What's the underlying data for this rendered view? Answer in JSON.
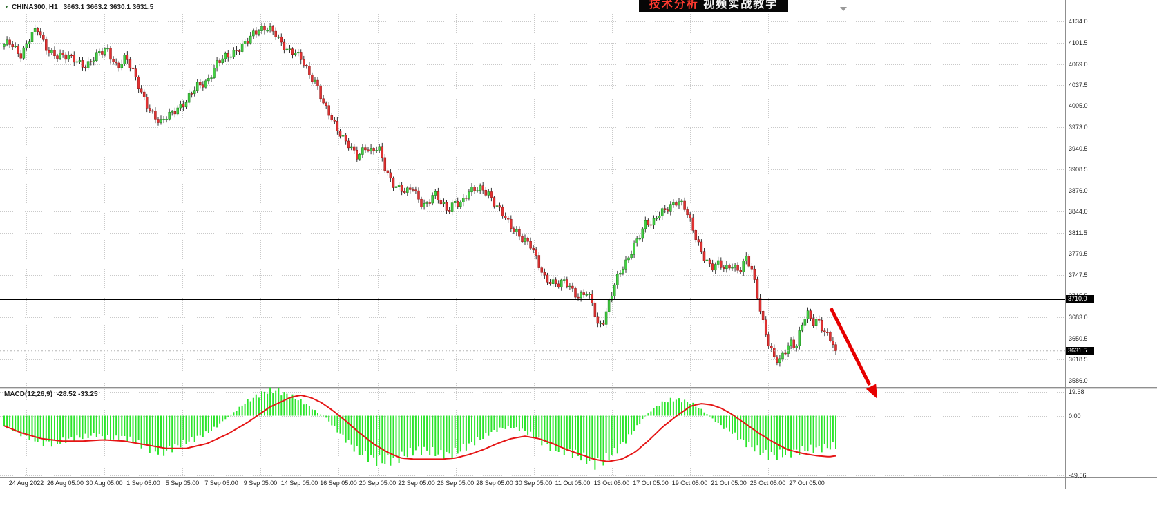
{
  "window": {
    "symbol": "CHINA300, H1",
    "ohlc": "3663.1 3663.2 3630.1 3631.5"
  },
  "banner": {
    "segments": [
      {
        "text": "技术分析",
        "color": "#ff3b30"
      },
      {
        "text": " 视频实战教学",
        "color": "#f2f2f2"
      }
    ]
  },
  "price_tags": {
    "hline": "3710.0",
    "last": "3631.5"
  },
  "chart_data": {
    "type": "candlestick",
    "title": "CHINA300, H1",
    "price_axis": {
      "ticks": [
        "4134.0",
        "4101.5",
        "4069.0",
        "4037.5",
        "4005.0",
        "3973.0",
        "3940.5",
        "3908.5",
        "3876.0",
        "3844.0",
        "3811.5",
        "3779.5",
        "3747.5",
        "3715.5",
        "3683.0",
        "3650.5",
        "3618.5",
        "3586.0"
      ]
    },
    "time_axis": {
      "ticks": [
        "24 Aug 2022",
        "26 Aug 05:00",
        "30 Aug 05:00",
        "1 Sep 05:00",
        "5 Sep 05:00",
        "7 Sep 05:00",
        "9 Sep 05:00",
        "14 Sep 05:00",
        "16 Sep 05:00",
        "20 Sep 05:00",
        "22 Sep 05:00",
        "26 Sep 05:00",
        "28 Sep 05:00",
        "30 Sep 05:00",
        "11 Oct 05:00",
        "13 Oct 05:00",
        "17 Oct 05:00",
        "19 Oct 05:00",
        "21 Oct 05:00",
        "25 Oct 05:00",
        "27 Oct 05:00"
      ]
    },
    "hline_value": 3710.0,
    "last_price": 3631.5,
    "price_keyframes": [
      [
        0,
        4093
      ],
      [
        15,
        4100
      ],
      [
        30,
        4085
      ],
      [
        45,
        4112
      ],
      [
        55,
        4120
      ],
      [
        65,
        4095
      ],
      [
        80,
        4085
      ],
      [
        95,
        4078
      ],
      [
        110,
        4075
      ],
      [
        125,
        4068
      ],
      [
        140,
        4080
      ],
      [
        155,
        4092
      ],
      [
        170,
        4066
      ],
      [
        182,
        4078
      ],
      [
        195,
        4050
      ],
      [
        210,
        4015
      ],
      [
        222,
        3990
      ],
      [
        232,
        3975
      ],
      [
        242,
        3990
      ],
      [
        255,
        4003
      ],
      [
        270,
        4010
      ],
      [
        285,
        4035
      ],
      [
        300,
        4045
      ],
      [
        315,
        4070
      ],
      [
        330,
        4080
      ],
      [
        345,
        4095
      ],
      [
        360,
        4105
      ],
      [
        375,
        4120
      ],
      [
        388,
        4128
      ],
      [
        398,
        4118
      ],
      [
        408,
        4095
      ],
      [
        418,
        4086
      ],
      [
        428,
        4090
      ],
      [
        438,
        4078
      ],
      [
        448,
        4050
      ],
      [
        458,
        4035
      ],
      [
        468,
        4010
      ],
      [
        478,
        3995
      ],
      [
        488,
        3970
      ],
      [
        498,
        3950
      ],
      [
        508,
        3940
      ],
      [
        518,
        3930
      ],
      [
        528,
        3945
      ],
      [
        538,
        3933
      ],
      [
        548,
        3940
      ],
      [
        558,
        3910
      ],
      [
        568,
        3890
      ],
      [
        578,
        3880
      ],
      [
        588,
        3870
      ],
      [
        598,
        3880
      ],
      [
        608,
        3860
      ],
      [
        618,
        3856
      ],
      [
        628,
        3870
      ],
      [
        638,
        3856
      ],
      [
        648,
        3846
      ],
      [
        658,
        3862
      ],
      [
        668,
        3856
      ],
      [
        678,
        3870
      ],
      [
        688,
        3878
      ],
      [
        698,
        3882
      ],
      [
        708,
        3872
      ],
      [
        718,
        3850
      ],
      [
        728,
        3838
      ],
      [
        738,
        3825
      ],
      [
        748,
        3815
      ],
      [
        758,
        3800
      ],
      [
        768,
        3790
      ],
      [
        778,
        3768
      ],
      [
        788,
        3746
      ],
      [
        798,
        3738
      ],
      [
        808,
        3730
      ],
      [
        818,
        3736
      ],
      [
        828,
        3726
      ],
      [
        838,
        3716
      ],
      [
        848,
        3722
      ],
      [
        858,
        3700
      ],
      [
        866,
        3666
      ],
      [
        874,
        3680
      ],
      [
        882,
        3710
      ],
      [
        890,
        3735
      ],
      [
        898,
        3750
      ],
      [
        908,
        3766
      ],
      [
        918,
        3795
      ],
      [
        928,
        3815
      ],
      [
        936,
        3830
      ],
      [
        944,
        3820
      ],
      [
        952,
        3836
      ],
      [
        960,
        3846
      ],
      [
        970,
        3855
      ],
      [
        980,
        3860
      ],
      [
        990,
        3850
      ],
      [
        1000,
        3826
      ],
      [
        1010,
        3800
      ],
      [
        1020,
        3775
      ],
      [
        1030,
        3756
      ],
      [
        1040,
        3762
      ],
      [
        1050,
        3758
      ],
      [
        1060,
        3766
      ],
      [
        1070,
        3752
      ],
      [
        1080,
        3770
      ],
      [
        1088,
        3756
      ],
      [
        1096,
        3720
      ],
      [
        1104,
        3680
      ],
      [
        1112,
        3646
      ],
      [
        1120,
        3620
      ],
      [
        1128,
        3612
      ],
      [
        1136,
        3630
      ],
      [
        1144,
        3648
      ],
      [
        1152,
        3640
      ],
      [
        1160,
        3668
      ],
      [
        1168,
        3688
      ],
      [
        1176,
        3672
      ],
      [
        1184,
        3680
      ],
      [
        1192,
        3666
      ],
      [
        1200,
        3655
      ],
      [
        1210,
        3634
      ]
    ],
    "macd": {
      "label": "MACD(12,26,9)",
      "values_text": "-28.52 -33.25",
      "macd_value": -28.52,
      "signal_value": -33.25,
      "axis_ticks": [
        "19.68",
        "0.00",
        "-49.56"
      ],
      "hist_keyframes": [
        [
          0,
          -8
        ],
        [
          20,
          -14
        ],
        [
          40,
          -20
        ],
        [
          60,
          -25
        ],
        [
          80,
          -26
        ],
        [
          100,
          -22
        ],
        [
          120,
          -20
        ],
        [
          140,
          -18
        ],
        [
          160,
          -22
        ],
        [
          180,
          -20
        ],
        [
          200,
          -26
        ],
        [
          220,
          -32
        ],
        [
          235,
          -35
        ],
        [
          250,
          -30
        ],
        [
          265,
          -26
        ],
        [
          280,
          -22
        ],
        [
          295,
          -18
        ],
        [
          310,
          -12
        ],
        [
          325,
          -4
        ],
        [
          340,
          4
        ],
        [
          355,
          12
        ],
        [
          370,
          18
        ],
        [
          385,
          23
        ],
        [
          400,
          24
        ],
        [
          415,
          20
        ],
        [
          430,
          16
        ],
        [
          445,
          10
        ],
        [
          460,
          3
        ],
        [
          472,
          -2
        ],
        [
          485,
          -12
        ],
        [
          500,
          -22
        ],
        [
          515,
          -32
        ],
        [
          530,
          -38
        ],
        [
          545,
          -42
        ],
        [
          560,
          -43
        ],
        [
          575,
          -40
        ],
        [
          590,
          -36
        ],
        [
          605,
          -32
        ],
        [
          620,
          -33
        ],
        [
          635,
          -36
        ],
        [
          650,
          -37
        ],
        [
          665,
          -33
        ],
        [
          680,
          -27
        ],
        [
          695,
          -22
        ],
        [
          710,
          -16
        ],
        [
          725,
          -12
        ],
        [
          740,
          -11
        ],
        [
          755,
          -13
        ],
        [
          770,
          -18
        ],
        [
          785,
          -25
        ],
        [
          800,
          -31
        ],
        [
          815,
          -33
        ],
        [
          830,
          -35
        ],
        [
          845,
          -40
        ],
        [
          860,
          -45
        ],
        [
          875,
          -42
        ],
        [
          890,
          -34
        ],
        [
          905,
          -24
        ],
        [
          920,
          -12
        ],
        [
          932,
          -2
        ],
        [
          945,
          6
        ],
        [
          958,
          12
        ],
        [
          972,
          15
        ],
        [
          985,
          15
        ],
        [
          1000,
          12
        ],
        [
          1015,
          6
        ],
        [
          1030,
          -2
        ],
        [
          1045,
          -10
        ],
        [
          1060,
          -16
        ],
        [
          1075,
          -24
        ],
        [
          1090,
          -30
        ],
        [
          1105,
          -35
        ],
        [
          1120,
          -38
        ],
        [
          1135,
          -36
        ],
        [
          1150,
          -34
        ],
        [
          1165,
          -32
        ],
        [
          1180,
          -31
        ],
        [
          1195,
          -30
        ],
        [
          1210,
          -28.52
        ]
      ],
      "signal_keyframes": [
        [
          0,
          -7
        ],
        [
          30,
          -14
        ],
        [
          60,
          -19
        ],
        [
          90,
          -21
        ],
        [
          120,
          -21
        ],
        [
          150,
          -20
        ],
        [
          180,
          -21
        ],
        [
          210,
          -24
        ],
        [
          240,
          -27
        ],
        [
          270,
          -27
        ],
        [
          300,
          -23
        ],
        [
          330,
          -15
        ],
        [
          360,
          -5
        ],
        [
          390,
          7
        ],
        [
          420,
          15
        ],
        [
          435,
          17
        ],
        [
          450,
          15
        ],
        [
          465,
          11
        ],
        [
          480,
          5
        ],
        [
          500,
          -4
        ],
        [
          520,
          -14
        ],
        [
          540,
          -23
        ],
        [
          560,
          -30
        ],
        [
          580,
          -35
        ],
        [
          600,
          -36
        ],
        [
          620,
          -36
        ],
        [
          640,
          -36
        ],
        [
          660,
          -35
        ],
        [
          680,
          -32
        ],
        [
          700,
          -28
        ],
        [
          720,
          -23
        ],
        [
          740,
          -19
        ],
        [
          760,
          -17
        ],
        [
          780,
          -19
        ],
        [
          800,
          -23
        ],
        [
          820,
          -28
        ],
        [
          840,
          -32
        ],
        [
          860,
          -36
        ],
        [
          880,
          -38
        ],
        [
          900,
          -36
        ],
        [
          920,
          -30
        ],
        [
          940,
          -20
        ],
        [
          960,
          -9
        ],
        [
          980,
          0
        ],
        [
          1000,
          8
        ],
        [
          1015,
          10
        ],
        [
          1030,
          9
        ],
        [
          1045,
          6
        ],
        [
          1060,
          1
        ],
        [
          1080,
          -7
        ],
        [
          1100,
          -15
        ],
        [
          1120,
          -22
        ],
        [
          1140,
          -28
        ],
        [
          1160,
          -31
        ],
        [
          1180,
          -33
        ],
        [
          1200,
          -34
        ],
        [
          1210,
          -33.25
        ]
      ]
    },
    "annotations": {
      "arrow": {
        "color": "#e60000",
        "direction": "down-right",
        "from_price": 3705,
        "to_price": 3585
      }
    }
  }
}
